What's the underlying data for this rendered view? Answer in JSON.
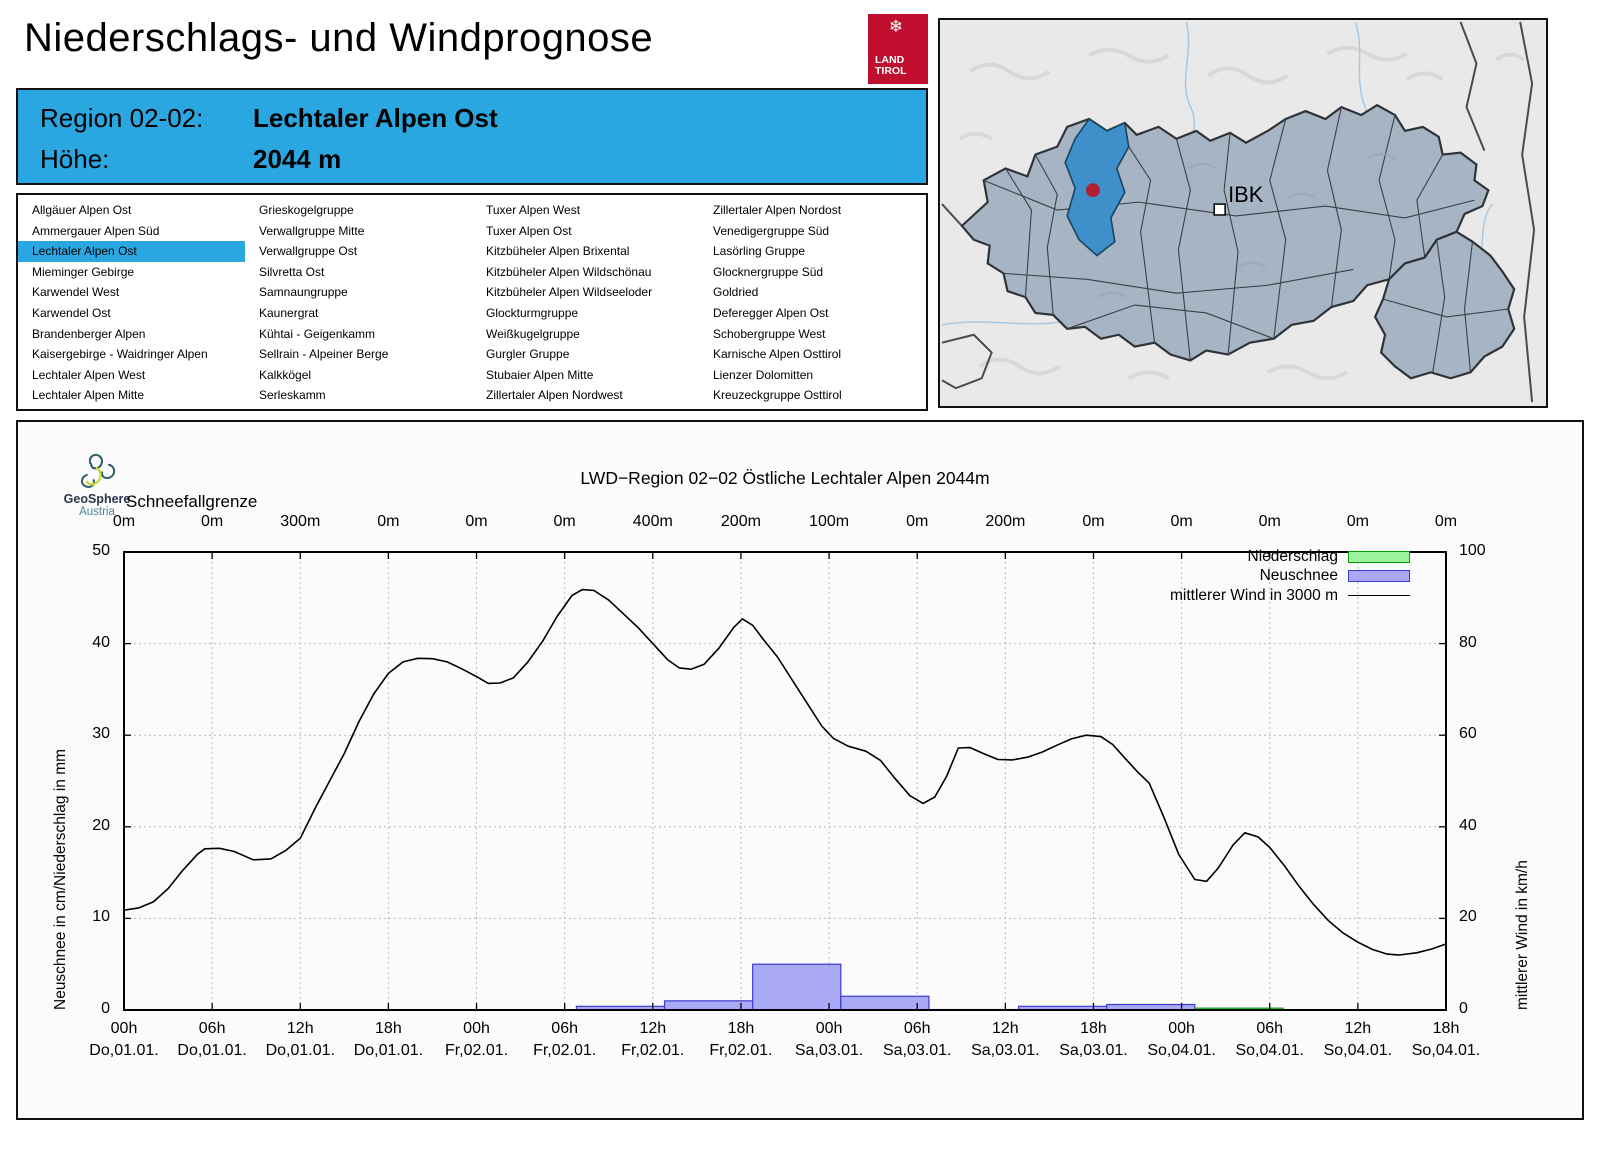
{
  "header": {
    "title": "Niederschlags- und Windprognose",
    "region_label": "Region 02-02:",
    "region_name": "Lechtaler Alpen Ost",
    "altitude_label": "Höhe:",
    "altitude_value": "2044 m",
    "accent_color": "#2aa7e1",
    "logo": {
      "snowflake": "❄",
      "line1": "LAND",
      "line2": "TIROL",
      "color": "#c00f2e"
    }
  },
  "region_list": {
    "selected": "Lechtaler Alpen Ost",
    "columns": [
      [
        "Allgäuer Alpen Ost",
        "Ammergauer Alpen Süd",
        "Lechtaler Alpen Ost",
        "Mieminger Gebirge",
        "Karwendel West",
        "Karwendel Ost",
        "Brandenberger Alpen",
        "Kaisergebirge - Waidringer Alpen",
        "Lechtaler Alpen West",
        "Lechtaler Alpen Mitte"
      ],
      [
        "Grieskogelgruppe",
        "Verwallgruppe Mitte",
        "Verwallgruppe Ost",
        "Silvretta Ost",
        "Samnaungruppe",
        "Kaunergrat",
        "Kühtai - Geigenkamm",
        "Sellrain - Alpeiner Berge",
        "Kalkkögel",
        "Serleskamm"
      ],
      [
        "Tuxer Alpen West",
        "Tuxer Alpen Ost",
        "Kitzbüheler Alpen Brixental",
        "Kitzbüheler Alpen Wildschönau",
        "Kitzbüheler Alpen Wildseeloder",
        "Glockturmgruppe",
        "Weißkugelgruppe",
        "Gurgler Gruppe",
        "Stubaier Alpen Mitte",
        "Zillertaler Alpen Nordwest"
      ],
      [
        "Zillertaler Alpen Nordost",
        "Venedigergruppe Süd",
        "Lasörling Gruppe",
        "Glocknergruppe Süd",
        "Goldried",
        "Deferegger Alpen Ost",
        "Schobergruppe West",
        "Karnische Alpen Osttirol",
        "Lienzer Dolomitten",
        "Kreuzeckgruppe Osttirol"
      ]
    ]
  },
  "map": {
    "ibk_label": "IBK",
    "region_fill": "#a7b4c4",
    "selected_region_color": "#3f8fcb",
    "marker_color": "#b02030"
  },
  "geosphere": {
    "name": "GeoSphere",
    "country": "Austria"
  },
  "chart_data": {
    "type": "line+bar",
    "title": "LWD−Region 02−02 Östliche Lechtaler Alpen 2044m",
    "top_axis": {
      "label": "Schneefallgrenze",
      "tick_labels": [
        "0m",
        "0m",
        "300m",
        "0m",
        "0m",
        "0m",
        "400m",
        "200m",
        "100m",
        "0m",
        "200m",
        "0m",
        "0m",
        "0m",
        "0m",
        "0m"
      ]
    },
    "x_axis": {
      "hours_range": [
        0,
        90
      ],
      "tick_step_h": 6,
      "times": [
        "00h",
        "06h",
        "12h",
        "18h",
        "00h",
        "06h",
        "12h",
        "18h",
        "00h",
        "06h",
        "12h",
        "18h",
        "00h",
        "06h",
        "12h",
        "18h"
      ],
      "dates": [
        "Do,01.01.",
        "Do,01.01.",
        "Do,01.01.",
        "Do,01.01.",
        "Fr,02.01.",
        "Fr,02.01.",
        "Fr,02.01.",
        "Fr,02.01.",
        "Sa,03.01.",
        "Sa,03.01.",
        "Sa,03.01.",
        "Sa,03.01.",
        "So,04.01.",
        "So,04.01.",
        "So,04.01.",
        "So,04.01."
      ]
    },
    "y_left": {
      "label": "Neuschnee in cm/Niederschlag in mm",
      "min": 0,
      "max": 50,
      "ticks": [
        0,
        10,
        20,
        30,
        40,
        50
      ]
    },
    "y_right": {
      "label": "mittlerer Wind in km/h",
      "min": 0,
      "max": 100,
      "ticks": [
        0,
        20,
        40,
        60,
        80,
        100
      ]
    },
    "legend": [
      {
        "label": "Niederschlag",
        "fill": "#9df29d",
        "border": "#00a000"
      },
      {
        "label": "Neuschnee",
        "fill": "#a9a9f5",
        "border": "#3c3cd0"
      },
      {
        "label": "mittlerer Wind in 3000 m",
        "line": "#000000"
      }
    ],
    "neuschnee_bars_cm": [
      {
        "start_h": 30.8,
        "end_h": 36.8,
        "value": 0.4
      },
      {
        "start_h": 36.8,
        "end_h": 42.8,
        "value": 1.0
      },
      {
        "start_h": 42.8,
        "end_h": 48.8,
        "value": 5.0
      },
      {
        "start_h": 48.8,
        "end_h": 54.8,
        "value": 1.5
      },
      {
        "start_h": 54.8,
        "end_h": 60.9,
        "value": 0.05
      },
      {
        "start_h": 60.9,
        "end_h": 66.9,
        "value": 0.4
      },
      {
        "start_h": 66.9,
        "end_h": 72.9,
        "value": 0.6
      }
    ],
    "niederschlag_bars_mm": [
      {
        "start_h": 72.9,
        "end_h": 78.9,
        "value": 0.2
      }
    ],
    "wind_line_kmh": [
      [
        0,
        21.8
      ],
      [
        1,
        22.3
      ],
      [
        2,
        23.6
      ],
      [
        3,
        26.5
      ],
      [
        4,
        30.5
      ],
      [
        5,
        34
      ],
      [
        5.5,
        35.2
      ],
      [
        6.5,
        35.3
      ],
      [
        7.5,
        34.6
      ],
      [
        8.8,
        32.8
      ],
      [
        10,
        33
      ],
      [
        11,
        34.8
      ],
      [
        12,
        37.5
      ],
      [
        13,
        44
      ],
      [
        14,
        50
      ],
      [
        15,
        56
      ],
      [
        16,
        63
      ],
      [
        17,
        69
      ],
      [
        18,
        73.5
      ],
      [
        19,
        76
      ],
      [
        20,
        76.8
      ],
      [
        21,
        76.7
      ],
      [
        22,
        76
      ],
      [
        23,
        74.5
      ],
      [
        24,
        72.8
      ],
      [
        24.8,
        71.3
      ],
      [
        25.6,
        71.4
      ],
      [
        26.5,
        72.5
      ],
      [
        27.5,
        76
      ],
      [
        28.5,
        80.5
      ],
      [
        29.5,
        86
      ],
      [
        30.5,
        90.5
      ],
      [
        31.2,
        91.8
      ],
      [
        32,
        91.6
      ],
      [
        33,
        89.5
      ],
      [
        34,
        86.5
      ],
      [
        35,
        83.5
      ],
      [
        36,
        80
      ],
      [
        37,
        76.5
      ],
      [
        37.8,
        74.7
      ],
      [
        38.6,
        74.4
      ],
      [
        39.5,
        75.5
      ],
      [
        40.5,
        79
      ],
      [
        41.5,
        83.5
      ],
      [
        42.1,
        85.4
      ],
      [
        42.8,
        84
      ],
      [
        43.5,
        81
      ],
      [
        44.5,
        77
      ],
      [
        45.5,
        72
      ],
      [
        46.5,
        67
      ],
      [
        47.5,
        62
      ],
      [
        48.3,
        59.3
      ],
      [
        49.3,
        57.6
      ],
      [
        50.5,
        56.5
      ],
      [
        51.5,
        54.5
      ],
      [
        52.5,
        50.5
      ],
      [
        53.5,
        46.8
      ],
      [
        54.4,
        45.1
      ],
      [
        55.2,
        46.5
      ],
      [
        56,
        51
      ],
      [
        56.8,
        57.2
      ],
      [
        57.6,
        57.3
      ],
      [
        58.5,
        56
      ],
      [
        59.5,
        54.7
      ],
      [
        60.5,
        54.6
      ],
      [
        61.5,
        55.2
      ],
      [
        62.5,
        56.3
      ],
      [
        63.5,
        57.8
      ],
      [
        64.5,
        59.2
      ],
      [
        65.5,
        60
      ],
      [
        66.5,
        59.7
      ],
      [
        67.3,
        58
      ],
      [
        68,
        55.5
      ],
      [
        69,
        52
      ],
      [
        69.8,
        49.5
      ],
      [
        70.8,
        42
      ],
      [
        71.8,
        34
      ],
      [
        72.9,
        28.5
      ],
      [
        73.7,
        28.1
      ],
      [
        74.5,
        31
      ],
      [
        75.5,
        36
      ],
      [
        76.3,
        38.7
      ],
      [
        77.2,
        37.8
      ],
      [
        78,
        35.5
      ],
      [
        79,
        31.5
      ],
      [
        80,
        27
      ],
      [
        81,
        23
      ],
      [
        82,
        19.5
      ],
      [
        83,
        16.8
      ],
      [
        84,
        14.8
      ],
      [
        85,
        13.2
      ],
      [
        86,
        12.2
      ],
      [
        86.8,
        12
      ],
      [
        88,
        12.5
      ],
      [
        89,
        13.3
      ],
      [
        90,
        14.4
      ]
    ]
  }
}
